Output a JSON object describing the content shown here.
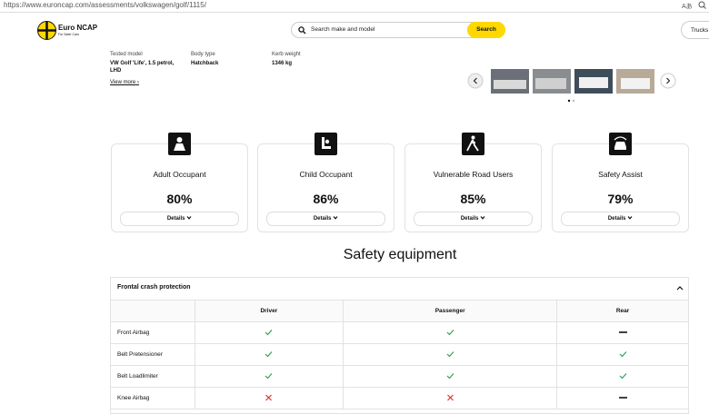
{
  "browser": {
    "url": "https://www.euroncap.com/assessments/volkswagen/golf/1115/"
  },
  "header": {
    "logo_title": "Euro NCAP",
    "logo_subtitle": "For Safer Cars",
    "search_placeholder": "Search make and model",
    "search_button": "Search",
    "trucks_button": "Trucks & Vans"
  },
  "vehicle": {
    "fields": [
      {
        "label": "Tested model",
        "value": "VW Golf 'Life', 1.5 petrol, LHD"
      },
      {
        "label": "Body type",
        "value": "Hatchback"
      },
      {
        "label": "Kerb weight",
        "value": "1346 kg"
      }
    ],
    "view_more": "View more"
  },
  "scores": [
    {
      "title": "Adult Occupant",
      "score": "80%",
      "button": "Details"
    },
    {
      "title": "Child Occupant",
      "score": "86%",
      "button": "Details"
    },
    {
      "title": "Vulnerable Road Users",
      "score": "85%",
      "button": "Details"
    },
    {
      "title": "Safety Assist",
      "score": "79%",
      "button": "Details"
    }
  ],
  "safety_equipment": {
    "title": "Safety equipment",
    "section": "Frontal crash protection",
    "columns": [
      "Driver",
      "Passenger",
      "Rear"
    ],
    "rows": [
      {
        "label": "Front Airbag",
        "cells": [
          "yes",
          "yes",
          "none"
        ]
      },
      {
        "label": "Belt Pretensioner",
        "cells": [
          "yes",
          "yes",
          "yes"
        ]
      },
      {
        "label": "Belt Loadlimiter",
        "cells": [
          "yes",
          "yes",
          "yes"
        ]
      },
      {
        "label": "Knee Airbag",
        "cells": [
          "no",
          "no",
          "none"
        ]
      }
    ]
  }
}
